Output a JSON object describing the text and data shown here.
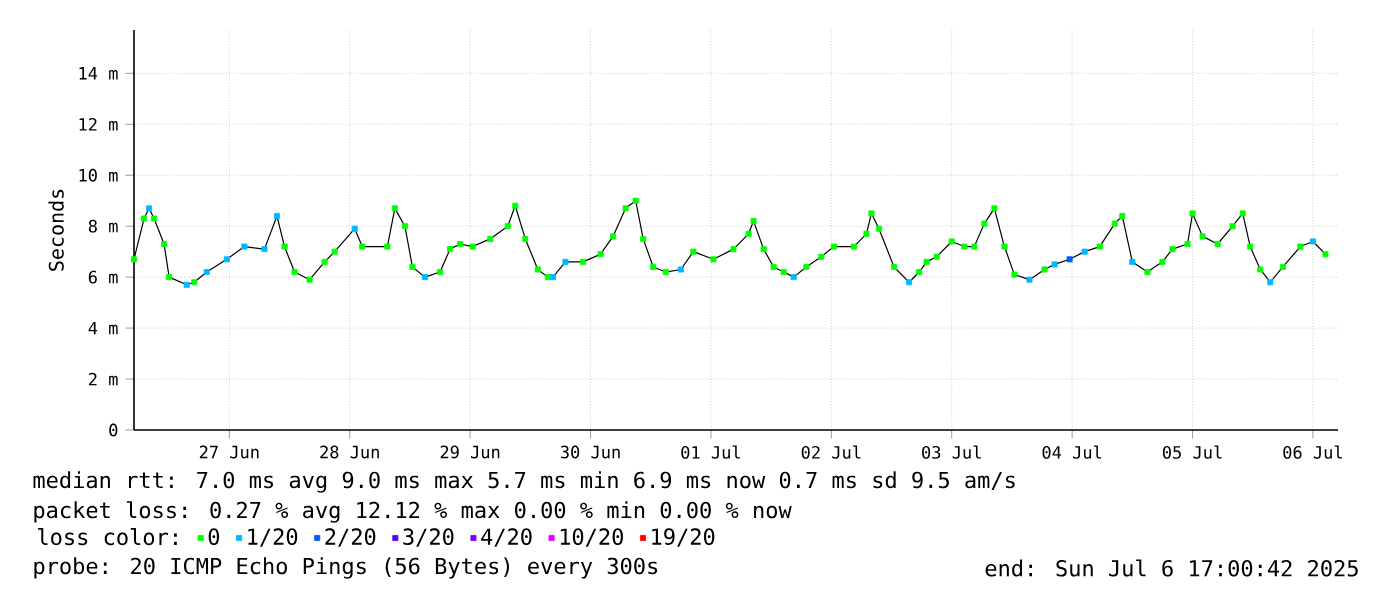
{
  "chart_data": {
    "type": "line",
    "ylabel": "Seconds",
    "legend_title": "loss color:",
    "legend": "bottom",
    "grid": true,
    "xlim": [
      "2025-06-26T17:00",
      "2025-07-06T17:00"
    ],
    "xticks": [
      {
        "value": "2025-06-27T12:00",
        "label": "27 Jun"
      },
      {
        "value": "2025-06-28T12:00",
        "label": "28 Jun"
      },
      {
        "value": "2025-06-29T12:00",
        "label": "29 Jun"
      },
      {
        "value": "2025-06-30T12:00",
        "label": "30 Jun"
      },
      {
        "value": "2025-07-01T12:00",
        "label": "01 Jul"
      },
      {
        "value": "2025-07-02T12:00",
        "label": "02 Jul"
      },
      {
        "value": "2025-07-03T12:00",
        "label": "03 Jul"
      },
      {
        "value": "2025-07-04T12:00",
        "label": "04 Jul"
      },
      {
        "value": "2025-07-05T12:00",
        "label": "05 Jul"
      },
      {
        "value": "2025-07-06T12:00",
        "label": "06 Jul"
      }
    ],
    "ylim": [
      0,
      15.7
    ],
    "yticks": [
      0,
      {
        "value": 2,
        "label": "2 m"
      },
      {
        "value": 4,
        "label": "4 m"
      },
      {
        "value": 6,
        "label": "6 m"
      },
      {
        "value": 8,
        "label": "8 m"
      },
      {
        "value": 10,
        "label": "10 m"
      },
      {
        "value": 12,
        "label": "12 m"
      },
      {
        "value": 14,
        "label": "14 m"
      }
    ],
    "annotations": [
      "median rtt:  7.0 ms avg  9.0 ms max  5.7 ms min  6.9 ms now  0.7 ms sd  9.5   am/s",
      "packet loss: 0.27 % avg  12.12 % max  0.00 % min  0.00 % now",
      "probe:       20 ICMP Echo Pings (56 Bytes) every 300s",
      "end: Sun Jul  6 17:00:42 2025"
    ],
    "series": [
      {
        "color": "#000000",
        "marker": "none",
        "x": [
          "2025-06-26T17:00",
          "2025-06-26T19:00",
          "2025-06-26T20:00",
          "2025-06-26T21:00",
          "2025-06-26T23:00",
          "2025-06-27T00:00",
          "2025-06-27T03:30",
          "2025-06-27T05:00",
          "2025-06-27T07:30",
          "2025-06-27T11:30",
          "2025-06-27T15:00",
          "2025-06-27T19:00",
          "2025-06-27T21:30",
          "2025-06-27T23:00",
          "2025-06-28T01:00",
          "2025-06-28T04:00",
          "2025-06-28T07:00",
          "2025-06-28T09:00",
          "2025-06-28T13:00",
          "2025-06-28T14:30",
          "2025-06-28T19:30",
          "2025-06-28T21:00",
          "2025-06-28T23:00",
          "2025-06-29T00:30",
          "2025-06-29T03:00",
          "2025-06-29T06:00",
          "2025-06-29T08:00",
          "2025-06-29T10:00",
          "2025-06-29T12:30",
          "2025-06-29T16:00",
          "2025-06-29T19:30",
          "2025-06-29T21:00",
          "2025-06-29T23:00",
          "2025-06-30T01:30",
          "2025-06-30T03:30",
          "2025-06-30T04:30",
          "2025-06-30T07:00",
          "2025-06-30T10:30",
          "2025-06-30T14:00",
          "2025-06-30T16:30",
          "2025-06-30T19:00",
          "2025-06-30T21:00",
          "2025-06-30T22:30",
          "2025-07-01T00:30",
          "2025-07-01T03:00",
          "2025-07-01T06:00",
          "2025-07-01T08:30",
          "2025-07-01T12:30",
          "2025-07-01T16:30",
          "2025-07-01T19:30",
          "2025-07-01T20:30",
          "2025-07-01T22:30",
          "2025-07-02T00:30",
          "2025-07-02T02:30",
          "2025-07-02T04:30",
          "2025-07-02T07:00",
          "2025-07-02T10:00",
          "2025-07-02T12:30",
          "2025-07-02T16:30",
          "2025-07-02T19:00",
          "2025-07-02T20:00",
          "2025-07-02T21:30",
          "2025-07-03T00:30",
          "2025-07-03T03:30",
          "2025-07-03T05:30",
          "2025-07-03T07:00",
          "2025-07-03T09:00",
          "2025-07-03T12:00",
          "2025-07-03T14:30",
          "2025-07-03T16:30",
          "2025-07-03T18:30",
          "2025-07-03T20:30",
          "2025-07-03T22:30",
          "2025-07-04T00:30",
          "2025-07-04T03:30",
          "2025-07-04T06:30",
          "2025-07-04T08:30",
          "2025-07-04T11:30",
          "2025-07-04T14:30",
          "2025-07-04T17:30",
          "2025-07-04T20:30",
          "2025-07-04T22:00",
          "2025-07-05T00:00",
          "2025-07-05T03:00",
          "2025-07-05T06:00",
          "2025-07-05T08:00",
          "2025-07-05T11:00",
          "2025-07-05T12:00",
          "2025-07-05T14:00",
          "2025-07-05T17:00",
          "2025-07-05T20:00",
          "2025-07-05T22:00",
          "2025-07-05T23:30",
          "2025-07-06T01:30",
          "2025-07-06T03:30",
          "2025-07-06T06:00",
          "2025-07-06T09:30",
          "2025-07-06T12:00",
          "2025-07-06T14:30"
        ],
        "values": [
          6.7,
          8.3,
          8.7,
          8.3,
          7.3,
          6.0,
          5.7,
          5.8,
          6.2,
          6.7,
          7.2,
          7.1,
          8.4,
          7.2,
          6.2,
          5.9,
          6.6,
          7.0,
          7.9,
          7.2,
          7.2,
          8.7,
          8.0,
          6.4,
          6.0,
          6.2,
          7.1,
          7.3,
          7.2,
          7.5,
          8.0,
          8.8,
          7.5,
          6.3,
          6.0,
          6.0,
          6.6,
          6.6,
          6.9,
          7.6,
          8.7,
          9.0,
          7.5,
          6.4,
          6.2,
          6.3,
          7.0,
          6.7,
          7.1,
          7.7,
          8.2,
          7.1,
          6.4,
          6.2,
          6.0,
          6.4,
          6.8,
          7.2,
          7.2,
          7.7,
          8.5,
          7.9,
          6.4,
          5.8,
          6.2,
          6.6,
          6.8,
          7.4,
          7.2,
          7.2,
          8.1,
          8.7,
          7.2,
          6.1,
          5.9,
          6.3,
          6.5,
          6.7,
          7.0,
          7.2,
          8.1,
          8.4,
          6.6,
          6.2,
          6.6,
          7.1,
          7.3,
          8.5,
          7.6,
          7.3,
          8.0,
          8.5,
          7.2,
          6.3,
          5.8,
          6.4,
          7.2,
          7.4,
          6.9
        ]
      },
      {
        "type": "scatter",
        "name": "0",
        "color": "#00ff00",
        "marker": "square",
        "x": [
          "2025-06-26T17:00",
          "2025-06-26T19:00",
          "2025-06-26T21:00",
          "2025-06-26T23:00",
          "2025-06-27T00:00",
          "2025-06-27T05:00",
          "2025-06-27T23:00",
          "2025-06-28T01:00",
          "2025-06-28T04:00",
          "2025-06-28T07:00",
          "2025-06-28T09:00",
          "2025-06-28T14:30",
          "2025-06-28T19:30",
          "2025-06-28T21:00",
          "2025-06-28T23:00",
          "2025-06-29T00:30",
          "2025-06-29T06:00",
          "2025-06-29T08:00",
          "2025-06-29T10:00",
          "2025-06-29T12:30",
          "2025-06-29T16:00",
          "2025-06-29T19:30",
          "2025-06-29T21:00",
          "2025-06-29T23:00",
          "2025-06-30T01:30",
          "2025-06-30T03:30",
          "2025-06-30T10:30",
          "2025-06-30T14:00",
          "2025-06-30T16:30",
          "2025-06-30T19:00",
          "2025-06-30T21:00",
          "2025-06-30T22:30",
          "2025-07-01T00:30",
          "2025-07-01T03:00",
          "2025-07-01T08:30",
          "2025-07-01T12:30",
          "2025-07-01T16:30",
          "2025-07-01T19:30",
          "2025-07-01T20:30",
          "2025-07-01T22:30",
          "2025-07-02T00:30",
          "2025-07-02T02:30",
          "2025-07-02T07:00",
          "2025-07-02T10:00",
          "2025-07-02T12:30",
          "2025-07-02T16:30",
          "2025-07-02T19:00",
          "2025-07-02T20:00",
          "2025-07-02T21:30",
          "2025-07-03T00:30",
          "2025-07-03T05:30",
          "2025-07-03T07:00",
          "2025-07-03T09:00",
          "2025-07-03T12:00",
          "2025-07-03T14:30",
          "2025-07-03T16:30",
          "2025-07-03T18:30",
          "2025-07-03T20:30",
          "2025-07-03T22:30",
          "2025-07-04T00:30",
          "2025-07-04T06:30",
          "2025-07-04T17:30",
          "2025-07-04T20:30",
          "2025-07-04T22:00",
          "2025-07-05T03:00",
          "2025-07-05T06:00",
          "2025-07-05T08:00",
          "2025-07-05T11:00",
          "2025-07-05T12:00",
          "2025-07-05T14:00",
          "2025-07-05T17:00",
          "2025-07-05T20:00",
          "2025-07-05T22:00",
          "2025-07-05T23:30",
          "2025-07-06T01:30",
          "2025-07-06T06:00",
          "2025-07-06T09:30",
          "2025-07-06T14:30"
        ],
        "values": [
          6.7,
          8.3,
          8.3,
          7.3,
          6.0,
          5.8,
          7.2,
          6.2,
          5.9,
          6.6,
          7.0,
          7.2,
          7.2,
          8.7,
          8.0,
          6.4,
          6.2,
          7.1,
          7.3,
          7.2,
          7.5,
          8.0,
          8.8,
          7.5,
          6.3,
          6.0,
          6.6,
          6.9,
          7.6,
          8.7,
          9.0,
          7.5,
          6.4,
          6.2,
          7.0,
          6.7,
          7.1,
          7.7,
          8.2,
          7.1,
          6.4,
          6.2,
          6.4,
          6.8,
          7.2,
          7.2,
          7.7,
          8.5,
          7.9,
          6.4,
          6.2,
          6.6,
          6.8,
          7.4,
          7.2,
          7.2,
          8.1,
          8.7,
          7.2,
          6.1,
          6.3,
          7.2,
          8.1,
          8.4,
          6.2,
          6.6,
          7.1,
          7.3,
          8.5,
          7.6,
          7.3,
          8.0,
          8.5,
          7.2,
          6.3,
          6.4,
          7.2,
          6.9
        ]
      },
      {
        "type": "scatter",
        "name": "1/20",
        "color": "#00b8ff",
        "marker": "square",
        "x": [
          "2025-06-26T20:00",
          "2025-06-27T03:30",
          "2025-06-27T07:30",
          "2025-06-27T11:30",
          "2025-06-27T15:00",
          "2025-06-27T19:00",
          "2025-06-27T21:30",
          "2025-06-28T13:00",
          "2025-06-29T03:00",
          "2025-06-30T04:30",
          "2025-06-30T07:00",
          "2025-07-01T06:00",
          "2025-07-02T04:30",
          "2025-07-03T03:30",
          "2025-07-04T03:30",
          "2025-07-04T08:30",
          "2025-07-04T14:30",
          "2025-07-05T00:00",
          "2025-07-06T03:30",
          "2025-07-06T12:00"
        ],
        "values": [
          8.7,
          5.7,
          6.2,
          6.7,
          7.2,
          7.1,
          8.4,
          7.9,
          6.0,
          6.0,
          6.6,
          6.3,
          6.0,
          5.8,
          5.9,
          6.5,
          7.0,
          6.6,
          5.8,
          7.4
        ]
      },
      {
        "type": "scatter",
        "name": "2/20",
        "color": "#0059ff",
        "marker": "square",
        "x": [
          "2025-07-04T11:30"
        ],
        "values": [
          6.7
        ]
      },
      {
        "type": "scatter",
        "name": "3/20",
        "color": "#5500ff",
        "marker": "square"
      },
      {
        "type": "scatter",
        "name": "4/20",
        "color": "#7e00ff",
        "marker": "square"
      },
      {
        "type": "scatter",
        "name": "10/20",
        "color": "#dd00ff",
        "marker": "square"
      },
      {
        "type": "scatter",
        "name": "19/20",
        "color": "#ff0000",
        "marker": "square"
      }
    ]
  }
}
